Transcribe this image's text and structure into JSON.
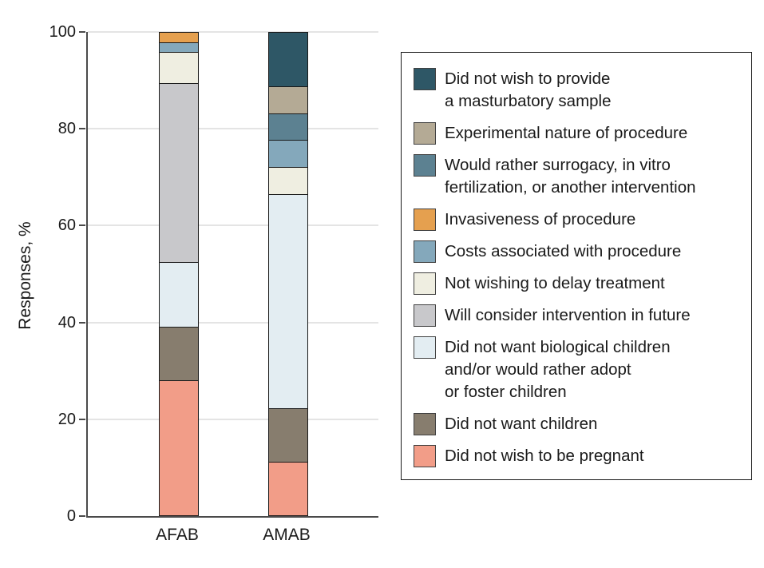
{
  "chart_data": {
    "type": "bar",
    "stacked": true,
    "title": "",
    "ylabel": "Responses, %",
    "xlabel": "",
    "ylim": [
      0,
      100
    ],
    "yticks": [
      0,
      20,
      40,
      60,
      80,
      100
    ],
    "grid": true,
    "legend_position": "right",
    "categories": [
      "AFAB",
      "AMAB"
    ],
    "series": [
      {
        "name": "Did not wish to provide\na masturbatory sample",
        "color": "#2E5766",
        "values": [
          0,
          12.5
        ]
      },
      {
        "name": "Experimental nature of procedure",
        "color": "#B4AA95",
        "values": [
          0,
          6.25
        ]
      },
      {
        "name": "Would rather surrogacy, in vitro\nfertilization, or another intervention",
        "color": "#5C8191",
        "values": [
          0,
          6.25
        ]
      },
      {
        "name": "Invasiveness of procedure",
        "color": "#E5A04F",
        "values": [
          2,
          0
        ]
      },
      {
        "name": "Costs associated with procedure",
        "color": "#84A8BB",
        "values": [
          2,
          6.25
        ]
      },
      {
        "name": "Not wishing to delay treatment",
        "color": "#EFEEE1",
        "values": [
          6.5,
          6.25
        ]
      },
      {
        "name": "Will consider intervention in future",
        "color": "#C8C8CB",
        "values": [
          37,
          0
        ]
      },
      {
        "name": "Did not want biological children\nand/or would rather adopt\nor foster children",
        "color": "#E3EDF2",
        "values": [
          13.5,
          50
        ]
      },
      {
        "name": "Did not want children",
        "color": "#877D6E",
        "values": [
          11,
          12.5
        ]
      },
      {
        "name": "Did not wish to be pregnant",
        "color": "#F29D88",
        "values": [
          28,
          12.5
        ]
      }
    ]
  },
  "axes": {
    "ylabel": "Responses, %"
  },
  "colors": {
    "axis": "#4a4a4a",
    "gridline": "#e4e4e4",
    "bar_outline": "#1a1a1a",
    "text": "#1a1a1a",
    "background": "#ffffff"
  }
}
